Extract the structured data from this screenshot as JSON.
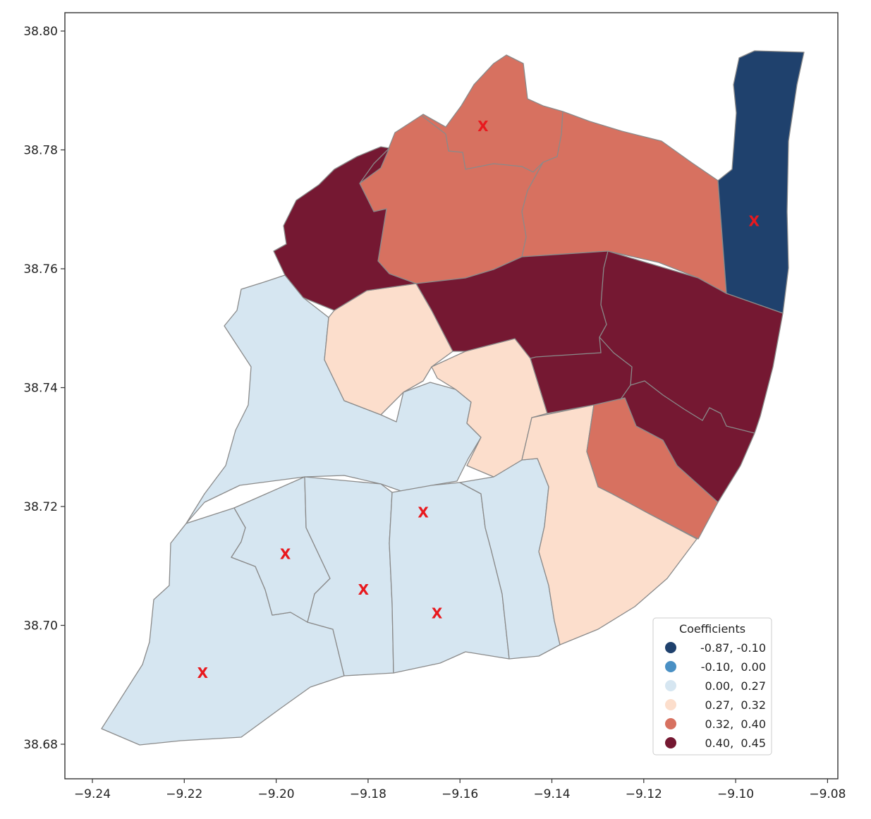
{
  "map": {
    "xaxis": {
      "ticks": [
        "-9.24",
        "-9.22",
        "-9.20",
        "-9.18",
        "-9.16",
        "-9.14",
        "-9.12",
        "-9.10",
        "-9.08"
      ]
    },
    "yaxis": {
      "ticks": [
        "38.80",
        "38.78",
        "38.76",
        "38.74",
        "38.72",
        "38.70",
        "38.68"
      ]
    },
    "marker_symbol": "X",
    "markers_lonlat": [
      [
        -9.155,
        38.784
      ],
      [
        -9.096,
        38.768
      ],
      [
        -9.168,
        38.719
      ],
      [
        -9.198,
        38.712
      ],
      [
        -9.181,
        38.706
      ],
      [
        -9.165,
        38.702
      ],
      [
        -9.216,
        38.692
      ]
    ],
    "legend": {
      "title": "Coefficients",
      "items": [
        {
          "label": "-0.87, -0.10",
          "color": "#1f416d"
        },
        {
          "label": "-0.10,  0.00",
          "color": "#4a90c4"
        },
        {
          "label": "0.00,  0.27",
          "color": "#d6e6f1"
        },
        {
          "label": "0.27,  0.32",
          "color": "#fcdecc"
        },
        {
          "label": "0.32,  0.40",
          "color": "#d77160"
        },
        {
          "label": "0.40,  0.45",
          "color": "#751832"
        }
      ]
    },
    "region_colors": {
      "very_negative": "#1f416d",
      "low": "#d6e6f1",
      "mid": "#fcdecc",
      "high": "#d77160",
      "very_high": "#751832"
    }
  }
}
